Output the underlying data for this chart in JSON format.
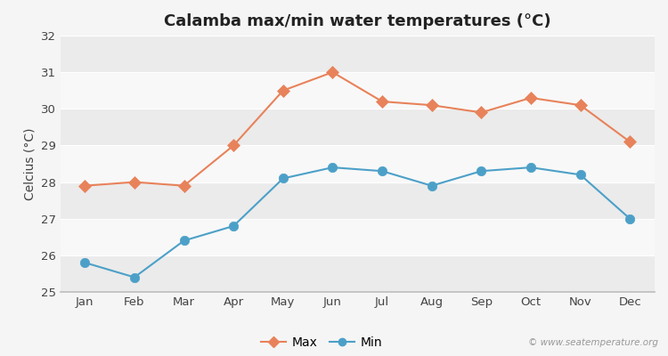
{
  "title": "Calamba max/min water temperatures (°C)",
  "ylabel": "Celcius (°C)",
  "months": [
    "Jan",
    "Feb",
    "Mar",
    "Apr",
    "May",
    "Jun",
    "Jul",
    "Aug",
    "Sep",
    "Oct",
    "Nov",
    "Dec"
  ],
  "max_temps": [
    27.9,
    28.0,
    27.9,
    29.0,
    30.5,
    31.0,
    30.2,
    30.1,
    29.9,
    30.3,
    30.1,
    29.1
  ],
  "min_temps": [
    25.8,
    25.4,
    26.4,
    26.8,
    28.1,
    28.4,
    28.3,
    27.9,
    28.3,
    28.4,
    28.2,
    27.0
  ],
  "max_color": "#e8825a",
  "min_color": "#4ca0c8",
  "bg_color": "#f5f5f5",
  "plot_bg_color": "#f0f0f0",
  "band_color_a": "#ebebeb",
  "band_color_b": "#f8f8f8",
  "ylim": [
    25,
    32
  ],
  "yticks": [
    25,
    26,
    27,
    28,
    29,
    30,
    31,
    32
  ],
  "legend_labels": [
    "Max",
    "Min"
  ],
  "watermark": "© www.seatemperature.org",
  "title_fontsize": 13,
  "label_fontsize": 10,
  "tick_fontsize": 9.5
}
